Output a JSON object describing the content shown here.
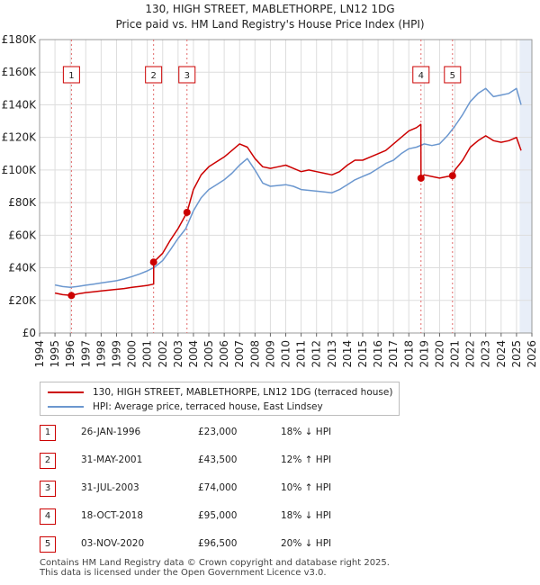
{
  "title": {
    "line1": "130, HIGH STREET, MABLETHORPE, LN12 1DG",
    "line2": "Price paid vs. HM Land Registry's House Price Index (HPI)"
  },
  "chart_data": {
    "type": "line",
    "xlim": [
      1994,
      2026
    ],
    "ylim": [
      0,
      180000
    ],
    "x_ticks": [
      "1994",
      "1995",
      "1996",
      "1997",
      "1998",
      "1999",
      "2000",
      "2001",
      "2002",
      "2003",
      "2004",
      "2005",
      "2006",
      "2007",
      "2008",
      "2009",
      "2010",
      "2011",
      "2012",
      "2013",
      "2014",
      "2015",
      "2016",
      "2017",
      "2018",
      "2019",
      "2020",
      "2021",
      "2022",
      "2023",
      "2024",
      "2025",
      "2026"
    ],
    "y_ticks": [
      {
        "value": 0,
        "label": "£0"
      },
      {
        "value": 20000,
        "label": "£20K"
      },
      {
        "value": 40000,
        "label": "£40K"
      },
      {
        "value": 60000,
        "label": "£60K"
      },
      {
        "value": 80000,
        "label": "£80K"
      },
      {
        "value": 100000,
        "label": "£100K"
      },
      {
        "value": 120000,
        "label": "£120K"
      },
      {
        "value": 140000,
        "label": "£140K"
      },
      {
        "value": 160000,
        "label": "£160K"
      },
      {
        "value": 180000,
        "label": "£180K"
      }
    ],
    "grid": true,
    "colors": {
      "property": "#cc0000",
      "hpi": "#6b97cf",
      "shade": "#e8eef8",
      "grid": "#dddddd",
      "marker_line": "#e26b6b"
    },
    "series": [
      {
        "name": "130, HIGH STREET, MABLETHORPE, LN12 1DG (terraced house)",
        "x": [
          1995.0,
          1995.5,
          1996.07,
          1996.5,
          1997.0,
          1997.5,
          1998.0,
          1998.5,
          1999.0,
          1999.5,
          2000.0,
          2000.5,
          2001.0,
          2001.41,
          2001.42,
          2002.0,
          2002.5,
          2003.0,
          2003.58,
          2004.0,
          2004.5,
          2005.0,
          2005.5,
          2006.0,
          2006.5,
          2007.0,
          2007.5,
          2008.0,
          2008.5,
          2009.0,
          2009.5,
          2010.0,
          2010.5,
          2011.0,
          2011.5,
          2012.0,
          2012.5,
          2013.0,
          2013.5,
          2014.0,
          2014.5,
          2015.0,
          2015.5,
          2016.0,
          2016.5,
          2017.0,
          2017.5,
          2018.0,
          2018.5,
          2018.78,
          2018.79,
          2019.0,
          2019.5,
          2020.0,
          2020.5,
          2020.84,
          2021.0,
          2021.5,
          2022.0,
          2022.5,
          2023.0,
          2023.5,
          2024.0,
          2024.5,
          2025.0,
          2025.3
        ],
        "y": [
          24500,
          23500,
          23000,
          24000,
          24800,
          25300,
          25800,
          26300,
          26800,
          27300,
          28000,
          28600,
          29200,
          30000,
          43500,
          49000,
          57000,
          64000,
          74000,
          88000,
          97000,
          102000,
          105000,
          108000,
          112000,
          116000,
          114000,
          107000,
          102000,
          101000,
          102000,
          103000,
          101000,
          99000,
          100000,
          99000,
          98000,
          97000,
          99000,
          103000,
          106000,
          106000,
          108000,
          110000,
          112000,
          116000,
          120000,
          124000,
          126000,
          128000,
          95000,
          97000,
          96000,
          95000,
          96000,
          96500,
          100000,
          106000,
          114000,
          118000,
          121000,
          118000,
          117000,
          118000,
          120000,
          112000
        ]
      },
      {
        "name": "HPI: Average price, terraced house, East Lindsey",
        "x": [
          1995.0,
          1995.5,
          1996.0,
          1996.5,
          1997.0,
          1997.5,
          1998.0,
          1998.5,
          1999.0,
          1999.5,
          2000.0,
          2000.5,
          2001.0,
          2001.5,
          2002.0,
          2002.5,
          2003.0,
          2003.5,
          2004.0,
          2004.5,
          2005.0,
          2005.5,
          2006.0,
          2006.5,
          2007.0,
          2007.5,
          2008.0,
          2008.5,
          2009.0,
          2009.5,
          2010.0,
          2010.5,
          2011.0,
          2011.5,
          2012.0,
          2012.5,
          2013.0,
          2013.5,
          2014.0,
          2014.5,
          2015.0,
          2015.5,
          2016.0,
          2016.5,
          2017.0,
          2017.5,
          2018.0,
          2018.5,
          2019.0,
          2019.5,
          2020.0,
          2020.5,
          2021.0,
          2021.5,
          2022.0,
          2022.5,
          2023.0,
          2023.5,
          2024.0,
          2024.5,
          2025.0,
          2025.3
        ],
        "y": [
          29500,
          28500,
          28000,
          28600,
          29300,
          30000,
          30700,
          31400,
          32100,
          33200,
          34600,
          36200,
          38100,
          40500,
          44500,
          51000,
          58000,
          64000,
          75000,
          83000,
          88000,
          91000,
          94000,
          98000,
          103000,
          107000,
          100000,
          92000,
          90000,
          90500,
          91000,
          90000,
          88000,
          87500,
          87000,
          86500,
          86000,
          88000,
          91000,
          94000,
          96000,
          98000,
          101000,
          104000,
          106000,
          110000,
          113000,
          114000,
          116000,
          115000,
          116000,
          121000,
          127000,
          134000,
          142000,
          147000,
          150000,
          145000,
          146000,
          147000,
          150000,
          140000
        ]
      }
    ],
    "sale_markers": [
      {
        "label": "1",
        "x": 1996.07,
        "y": 23000
      },
      {
        "label": "2",
        "x": 2001.41,
        "y": 43500
      },
      {
        "label": "3",
        "x": 2003.58,
        "y": 74000
      },
      {
        "label": "4",
        "x": 2018.79,
        "y": 95000
      },
      {
        "label": "5",
        "x": 2020.84,
        "y": 96500
      }
    ],
    "shade_from": 2025.2
  },
  "legend": {
    "property_label": "130, HIGH STREET, MABLETHORPE, LN12 1DG (terraced house)",
    "hpi_label": "HPI: Average price, terraced house, East Lindsey"
  },
  "sales": [
    {
      "num": "1",
      "date": "26-JAN-1996",
      "price": "£23,000",
      "hpi": "18% ↓ HPI"
    },
    {
      "num": "2",
      "date": "31-MAY-2001",
      "price": "£43,500",
      "hpi": "12% ↑ HPI"
    },
    {
      "num": "3",
      "date": "31-JUL-2003",
      "price": "£74,000",
      "hpi": "10% ↑ HPI"
    },
    {
      "num": "4",
      "date": "18-OCT-2018",
      "price": "£95,000",
      "hpi": "18% ↓ HPI"
    },
    {
      "num": "5",
      "date": "03-NOV-2020",
      "price": "£96,500",
      "hpi": "20% ↓ HPI"
    }
  ],
  "footer": {
    "line1": "Contains HM Land Registry data © Crown copyright and database right 2025.",
    "line2": "This data is licensed under the Open Government Licence v3.0."
  }
}
